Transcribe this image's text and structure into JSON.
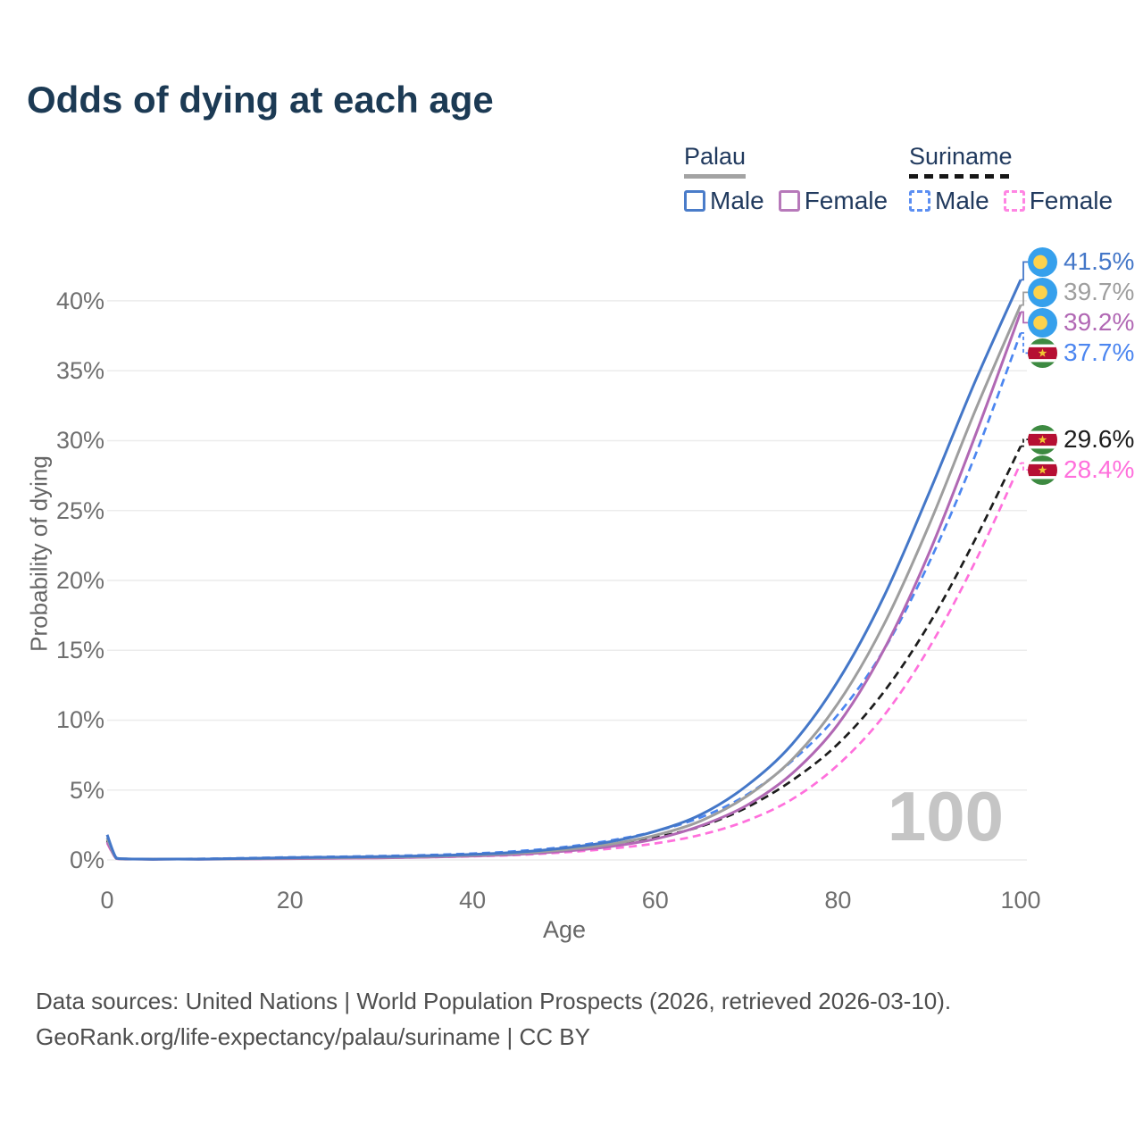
{
  "title": "Odds of dying at each age",
  "legend": {
    "groups": [
      {
        "country": "Palau",
        "line_style": "solid",
        "underline_color": "#a3a3a3",
        "items": [
          {
            "label": "Male",
            "color": "#4a7cc9",
            "dashed": false
          },
          {
            "label": "Female",
            "color": "#b779ba",
            "dashed": false
          }
        ]
      },
      {
        "country": "Suriname",
        "line_style": "dashed",
        "underline_color": "#161616",
        "items": [
          {
            "label": "Male",
            "color": "#5b8ef2",
            "dashed": true
          },
          {
            "label": "Female",
            "color": "#ff85e3",
            "dashed": true
          }
        ]
      }
    ]
  },
  "axes": {
    "y_label": "Probability of dying",
    "x_label": "Age",
    "y_ticks": [
      "0%",
      "5%",
      "10%",
      "15%",
      "20%",
      "25%",
      "30%",
      "35%",
      "40%"
    ],
    "y_tick_values": [
      0,
      5,
      10,
      15,
      20,
      25,
      30,
      35,
      40
    ],
    "x_ticks": [
      "0",
      "20",
      "40",
      "60",
      "80",
      "100"
    ],
    "x_tick_values": [
      0,
      20,
      40,
      60,
      80,
      100
    ]
  },
  "watermark_age": "100",
  "chart_data": {
    "type": "line",
    "title": "Odds of dying at each age",
    "xlabel": "Age",
    "ylabel": "Probability of dying",
    "x_range": [
      0,
      100
    ],
    "y_range_percent": [
      0,
      43
    ],
    "grid": true,
    "ages": [
      0,
      1,
      2,
      5,
      10,
      15,
      20,
      25,
      30,
      35,
      40,
      45,
      50,
      55,
      60,
      65,
      70,
      75,
      80,
      85,
      90,
      95,
      100
    ],
    "series": [
      {
        "name": "Palau Male",
        "color": "#4477c8",
        "dashed": false,
        "flag": "palau",
        "end_label": "41.5%",
        "end_value": 41.5,
        "values": [
          1.8,
          0.14,
          0.08,
          0.05,
          0.06,
          0.1,
          0.16,
          0.2,
          0.24,
          0.3,
          0.4,
          0.56,
          0.85,
          1.3,
          2.05,
          3.25,
          5.3,
          8.3,
          12.8,
          18.8,
          26.3,
          34.2,
          41.5
        ]
      },
      {
        "name": "Palau Both sexes",
        "color": "#9e9e9e",
        "dashed": false,
        "flag": "palau",
        "end_label": "39.7%",
        "end_value": 39.7,
        "values": [
          1.55,
          0.12,
          0.07,
          0.05,
          0.055,
          0.085,
          0.125,
          0.16,
          0.195,
          0.25,
          0.34,
          0.48,
          0.73,
          1.12,
          1.76,
          2.8,
          4.55,
          7.2,
          11.2,
          16.8,
          24.0,
          32.1,
          39.7
        ]
      },
      {
        "name": "Palau Female",
        "color": "#b168b4",
        "dashed": false,
        "flag": "palau",
        "end_label": "39.2%",
        "end_value": 39.2,
        "values": [
          1.3,
          0.1,
          0.06,
          0.04,
          0.05,
          0.07,
          0.09,
          0.12,
          0.15,
          0.2,
          0.28,
          0.4,
          0.62,
          0.95,
          1.5,
          2.45,
          3.9,
          6.2,
          9.7,
          15.0,
          22.0,
          30.3,
          39.2
        ]
      },
      {
        "name": "Suriname Male",
        "color": "#4c86f0",
        "dashed": true,
        "flag": "suriname",
        "end_label": "37.7%",
        "end_value": 37.7,
        "values": [
          1.6,
          0.13,
          0.08,
          0.06,
          0.08,
          0.13,
          0.19,
          0.23,
          0.28,
          0.35,
          0.46,
          0.63,
          0.92,
          1.38,
          2.05,
          3.05,
          4.65,
          7.1,
          10.4,
          15.0,
          21.3,
          28.9,
          37.7
        ]
      },
      {
        "name": "Suriname Both sexes",
        "color": "#1c1c1c",
        "dashed": true,
        "flag": "suriname",
        "end_label": "29.6%",
        "end_value": 29.6,
        "values": [
          1.4,
          0.11,
          0.07,
          0.05,
          0.07,
          0.1,
          0.15,
          0.18,
          0.22,
          0.28,
          0.37,
          0.51,
          0.74,
          1.1,
          1.62,
          2.4,
          3.75,
          5.7,
          8.3,
          12.0,
          16.9,
          22.9,
          29.6
        ]
      },
      {
        "name": "Suriname Female",
        "color": "#ff70dc",
        "dashed": true,
        "flag": "suriname",
        "end_label": "28.4%",
        "end_value": 28.4,
        "values": [
          1.2,
          0.1,
          0.06,
          0.04,
          0.05,
          0.07,
          0.1,
          0.12,
          0.15,
          0.19,
          0.26,
          0.36,
          0.54,
          0.8,
          1.18,
          1.8,
          2.8,
          4.35,
          6.8,
          10.3,
          15.2,
          21.3,
          28.4
        ]
      }
    ]
  },
  "footer": {
    "line1": "Data sources: United Nations | World Population Prospects (2026, retrieved 2026-03-10).",
    "line2": "GeoRank.org/life-expectancy/palau/suriname | CC BY"
  }
}
